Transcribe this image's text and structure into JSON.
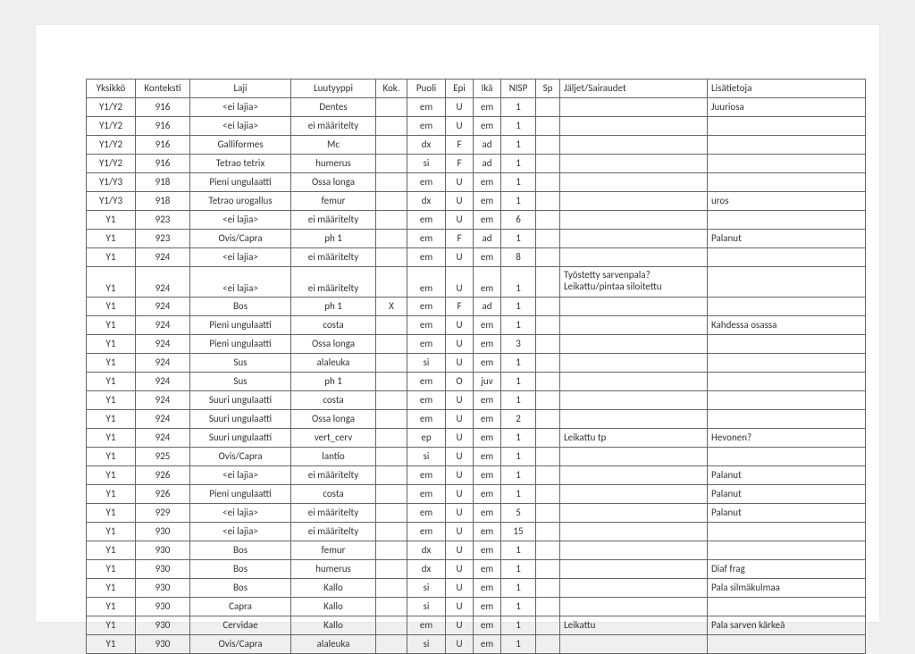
{
  "columns": [
    {
      "key": "yksikko",
      "label": "Yksikkö",
      "class": "c-yks"
    },
    {
      "key": "konteksti",
      "label": "Konteksti",
      "class": "c-kon"
    },
    {
      "key": "laji",
      "label": "Laji",
      "class": "c-laj"
    },
    {
      "key": "luutyyppi",
      "label": "Luutyyppi",
      "class": "c-luu"
    },
    {
      "key": "kok",
      "label": "Kok.",
      "class": "c-kok"
    },
    {
      "key": "puoli",
      "label": "Puoli",
      "class": "c-puo"
    },
    {
      "key": "epi",
      "label": "Epi",
      "class": "c-epi"
    },
    {
      "key": "ika",
      "label": "Ikä",
      "class": "c-ika"
    },
    {
      "key": "nisp",
      "label": "NISP",
      "class": "c-nis"
    },
    {
      "key": "sp",
      "label": "Sp",
      "class": "c-sp"
    },
    {
      "key": "jaljet",
      "label": "Jäljet/Sairaudet",
      "class": "c-jal"
    },
    {
      "key": "lisa",
      "label": "Lisätietoja",
      "class": "c-lis"
    }
  ],
  "rows": [
    {
      "yksikko": "Y1/Y2",
      "konteksti": "916",
      "laji": "<ei lajia>",
      "luutyyppi": "Dentes",
      "kok": "",
      "puoli": "em",
      "epi": "U",
      "ika": "em",
      "nisp": "1",
      "sp": "",
      "jaljet": "",
      "lisa": "Juuriosa"
    },
    {
      "yksikko": "Y1/Y2",
      "konteksti": "916",
      "laji": "<ei lajia>",
      "luutyyppi": "ei määritelty",
      "kok": "",
      "puoli": "em",
      "epi": "U",
      "ika": "em",
      "nisp": "1",
      "sp": "",
      "jaljet": "",
      "lisa": ""
    },
    {
      "yksikko": "Y1/Y2",
      "konteksti": "916",
      "laji": "Galliformes",
      "luutyyppi": "Mc",
      "kok": "",
      "puoli": "dx",
      "epi": "F",
      "ika": "ad",
      "nisp": "1",
      "sp": "",
      "jaljet": "",
      "lisa": ""
    },
    {
      "yksikko": "Y1/Y2",
      "konteksti": "916",
      "laji": "Tetrao tetrix",
      "luutyyppi": "humerus",
      "kok": "",
      "puoli": "si",
      "epi": "F",
      "ika": "ad",
      "nisp": "1",
      "sp": "",
      "jaljet": "",
      "lisa": ""
    },
    {
      "yksikko": "Y1/Y3",
      "konteksti": "918",
      "laji": "Pieni ungulaatti",
      "luutyyppi": "Ossa longa",
      "kok": "",
      "puoli": "em",
      "epi": "U",
      "ika": "em",
      "nisp": "1",
      "sp": "",
      "jaljet": "",
      "lisa": ""
    },
    {
      "yksikko": "Y1/Y3",
      "konteksti": "918",
      "laji": "Tetrao urogallus",
      "luutyyppi": "femur",
      "kok": "",
      "puoli": "dx",
      "epi": "U",
      "ika": "em",
      "nisp": "1",
      "sp": "",
      "jaljet": "",
      "lisa": "uros"
    },
    {
      "yksikko": "Y1",
      "konteksti": "923",
      "laji": "<ei lajia>",
      "luutyyppi": "ei määritelty",
      "kok": "",
      "puoli": "em",
      "epi": "U",
      "ika": "em",
      "nisp": "6",
      "sp": "",
      "jaljet": "",
      "lisa": ""
    },
    {
      "yksikko": "Y1",
      "konteksti": "923",
      "laji": "Ovis/Capra",
      "luutyyppi": "ph 1",
      "kok": "",
      "puoli": "em",
      "epi": "F",
      "ika": "ad",
      "nisp": "1",
      "sp": "",
      "jaljet": "",
      "lisa": "Palanut"
    },
    {
      "yksikko": "Y1",
      "konteksti": "924",
      "laji": "<ei lajia>",
      "luutyyppi": "ei määritelty",
      "kok": "",
      "puoli": "em",
      "epi": "U",
      "ika": "em",
      "nisp": "8",
      "sp": "",
      "jaljet": "",
      "lisa": ""
    },
    {
      "yksikko": "Y1",
      "konteksti": "924",
      "laji": "<ei lajia>",
      "luutyyppi": "ei määritelty",
      "kok": "",
      "puoli": "em",
      "epi": "U",
      "ika": "em",
      "nisp": "1",
      "sp": "",
      "jaljet": "Työstetty sarvenpala?\nLeikattu/pintaa siloitettu",
      "lisa": "",
      "tall": true
    },
    {
      "yksikko": "Y1",
      "konteksti": "924",
      "laji": "Bos",
      "luutyyppi": "ph 1",
      "kok": "X",
      "puoli": "em",
      "epi": "F",
      "ika": "ad",
      "nisp": "1",
      "sp": "",
      "jaljet": "",
      "lisa": ""
    },
    {
      "yksikko": "Y1",
      "konteksti": "924",
      "laji": "Pieni ungulaatti",
      "luutyyppi": "costa",
      "kok": "",
      "puoli": "em",
      "epi": "U",
      "ika": "em",
      "nisp": "1",
      "sp": "",
      "jaljet": "",
      "lisa": "Kahdessa osassa"
    },
    {
      "yksikko": "Y1",
      "konteksti": "924",
      "laji": "Pieni ungulaatti",
      "luutyyppi": "Ossa longa",
      "kok": "",
      "puoli": "em",
      "epi": "U",
      "ika": "em",
      "nisp": "3",
      "sp": "",
      "jaljet": "",
      "lisa": ""
    },
    {
      "yksikko": "Y1",
      "konteksti": "924",
      "laji": "Sus",
      "luutyyppi": "alaleuka",
      "kok": "",
      "puoli": "si",
      "epi": "U",
      "ika": "em",
      "nisp": "1",
      "sp": "",
      "jaljet": "",
      "lisa": ""
    },
    {
      "yksikko": "Y1",
      "konteksti": "924",
      "laji": "Sus",
      "luutyyppi": "ph 1",
      "kok": "",
      "puoli": "em",
      "epi": "O",
      "ika": "juv",
      "nisp": "1",
      "sp": "",
      "jaljet": "",
      "lisa": ""
    },
    {
      "yksikko": "Y1",
      "konteksti": "924",
      "laji": "Suuri ungulaatti",
      "luutyyppi": "costa",
      "kok": "",
      "puoli": "em",
      "epi": "U",
      "ika": "em",
      "nisp": "1",
      "sp": "",
      "jaljet": "",
      "lisa": ""
    },
    {
      "yksikko": "Y1",
      "konteksti": "924",
      "laji": "Suuri ungulaatti",
      "luutyyppi": "Ossa longa",
      "kok": "",
      "puoli": "em",
      "epi": "U",
      "ika": "em",
      "nisp": "2",
      "sp": "",
      "jaljet": "",
      "lisa": ""
    },
    {
      "yksikko": "Y1",
      "konteksti": "924",
      "laji": "Suuri ungulaatti",
      "luutyyppi": "vert_cerv",
      "kok": "",
      "puoli": "ep",
      "epi": "U",
      "ika": "em",
      "nisp": "1",
      "sp": "",
      "jaljet": "Leikattu tp",
      "lisa": "Hevonen?"
    },
    {
      "yksikko": "Y1",
      "konteksti": "925",
      "laji": "Ovis/Capra",
      "luutyyppi": "lantio",
      "kok": "",
      "puoli": "si",
      "epi": "U",
      "ika": "em",
      "nisp": "1",
      "sp": "",
      "jaljet": "",
      "lisa": ""
    },
    {
      "yksikko": "Y1",
      "konteksti": "926",
      "laji": "<ei lajia>",
      "luutyyppi": "ei määritelty",
      "kok": "",
      "puoli": "em",
      "epi": "U",
      "ika": "em",
      "nisp": "1",
      "sp": "",
      "jaljet": "",
      "lisa": "Palanut"
    },
    {
      "yksikko": "Y1",
      "konteksti": "926",
      "laji": "Pieni ungulaatti",
      "luutyyppi": "costa",
      "kok": "",
      "puoli": "em",
      "epi": "U",
      "ika": "em",
      "nisp": "1",
      "sp": "",
      "jaljet": "",
      "lisa": "Palanut"
    },
    {
      "yksikko": "Y1",
      "konteksti": "929",
      "laji": "<ei lajia>",
      "luutyyppi": "ei määritelty",
      "kok": "",
      "puoli": "em",
      "epi": "U",
      "ika": "em",
      "nisp": "5",
      "sp": "",
      "jaljet": "",
      "lisa": "Palanut"
    },
    {
      "yksikko": "Y1",
      "konteksti": "930",
      "laji": "<ei lajia>",
      "luutyyppi": "ei määritelty",
      "kok": "",
      "puoli": "em",
      "epi": "U",
      "ika": "em",
      "nisp": "15",
      "sp": "",
      "jaljet": "",
      "lisa": ""
    },
    {
      "yksikko": "Y1",
      "konteksti": "930",
      "laji": "Bos",
      "luutyyppi": "femur",
      "kok": "",
      "puoli": "dx",
      "epi": "U",
      "ika": "em",
      "nisp": "1",
      "sp": "",
      "jaljet": "",
      "lisa": ""
    },
    {
      "yksikko": "Y1",
      "konteksti": "930",
      "laji": "Bos",
      "luutyyppi": "humerus",
      "kok": "",
      "puoli": "dx",
      "epi": "U",
      "ika": "em",
      "nisp": "1",
      "sp": "",
      "jaljet": "",
      "lisa": "Diaf frag"
    },
    {
      "yksikko": "Y1",
      "konteksti": "930",
      "laji": "Bos",
      "luutyyppi": "Kallo",
      "kok": "",
      "puoli": "si",
      "epi": "U",
      "ika": "em",
      "nisp": "1",
      "sp": "",
      "jaljet": "",
      "lisa": "Pala silmäkulmaa"
    },
    {
      "yksikko": "Y1",
      "konteksti": "930",
      "laji": "Capra",
      "luutyyppi": "Kallo",
      "kok": "",
      "puoli": "si",
      "epi": "U",
      "ika": "em",
      "nisp": "1",
      "sp": "",
      "jaljet": "",
      "lisa": ""
    },
    {
      "yksikko": "Y1",
      "konteksti": "930",
      "laji": "Cervidae",
      "luutyyppi": "Kallo",
      "kok": "",
      "puoli": "em",
      "epi": "U",
      "ika": "em",
      "nisp": "1",
      "sp": "",
      "jaljet": "Leikattu",
      "lisa": "Pala sarven kärkeä"
    },
    {
      "yksikko": "Y1",
      "konteksti": "930",
      "laji": "Ovis/Capra",
      "luutyyppi": "alaleuka",
      "kok": "",
      "puoli": "si",
      "epi": "U",
      "ika": "em",
      "nisp": "1",
      "sp": "",
      "jaljet": "",
      "lisa": ""
    }
  ]
}
